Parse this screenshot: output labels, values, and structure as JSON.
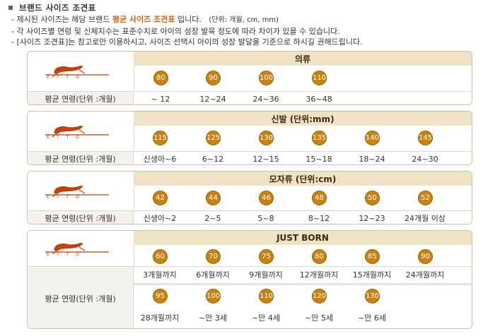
{
  "title": "브랜드 사이즈 조견표",
  "notes": [
    {
      "prefix": "- 제시된 사이즈는 해당 브랜드 ",
      "highlight": "평균 사이즈 조견표",
      "suffix": " 입니다.",
      "small": "(단위: 개월, cm, mm)"
    },
    {
      "prefix": "- 각 사이즈별 연령 및 신체지수는 표준수치로 아이의 성장 발육 정도에 따라 차이가 있을 수 있습니다."
    },
    {
      "prefix": "- [사이즈 조견표]는 참고로만 이용하시고, 사이즈 선택시 아이의 성장 발달을 기준으로 하시길 권해드립니다."
    }
  ],
  "brand_logo": "etto-logo-icon",
  "tables": [
    {
      "header": "의류",
      "age_label": "평균 연령(단위 :개월)",
      "sizes": [
        "80",
        "90",
        "100",
        "110"
      ],
      "ages": [
        "~ 12",
        "12~24",
        "24~36",
        "36~48"
      ]
    },
    {
      "header": "신발 (단위:mm)",
      "age_label": "평균 연령(단위 :개월)",
      "sizes": [
        "115",
        "125",
        "130",
        "135",
        "140",
        "145"
      ],
      "ages": [
        "신생아~6",
        "6~12",
        "12~15",
        "15~18",
        "18~24",
        "24~30"
      ]
    },
    {
      "header": "모자류 (단위:cm)",
      "age_label": "평균 연령(단위 :개월)",
      "sizes": [
        "42",
        "44",
        "46",
        "48",
        "50",
        "52"
      ],
      "ages": [
        "신생아~2",
        "2~5",
        "5~8",
        "8~12",
        "12~23",
        "24개월 이상"
      ]
    },
    {
      "header": "JUST BORN",
      "age_label": "평균 연령(단위 :개월)",
      "sizes": [
        "60",
        "70",
        "75",
        "80",
        "85",
        "90"
      ],
      "ages": [
        "3개월까지",
        "6개월까지",
        "9개월까지",
        "12개월까지",
        "15개월까지",
        "24개월까지"
      ],
      "sizes2": [
        "95",
        "100",
        "110",
        "120",
        "130"
      ],
      "ages2": [
        "28개월까지",
        "~만 3세",
        "~만 4세",
        "~만 5세",
        "~만 6세"
      ]
    }
  ],
  "colors": {
    "badge": "#c9820f",
    "header_bg": "#efe2c5",
    "border": "#cfc0a4",
    "highlight": "#d2620f",
    "logo": "#c2410c"
  }
}
